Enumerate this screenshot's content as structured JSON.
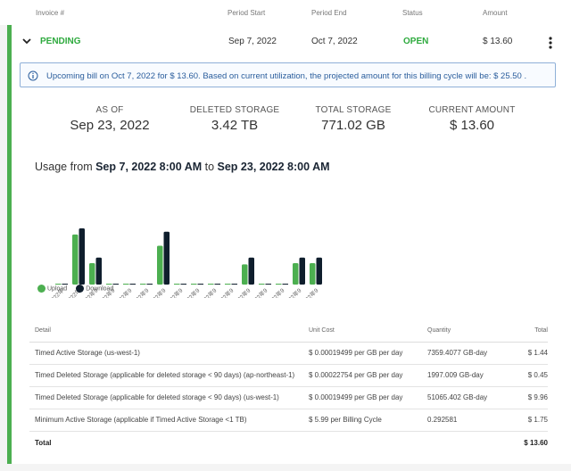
{
  "header": {
    "invoice_col": "Invoice #",
    "period_start_col": "Period Start",
    "period_end_col": "Period End",
    "status_col": "Status",
    "amount_col": "Amount"
  },
  "invoice": {
    "name": "PENDING",
    "period_start": "Sep 7, 2022",
    "period_end": "Oct 7, 2022",
    "status": "OPEN",
    "amount": "$ 13.60"
  },
  "notice": "Upcoming bill on Oct 7, 2022 for $ 13.60. Based on current utilization, the projected amount for this billing cycle will be: $ 25.50 .",
  "stats": [
    {
      "label": "AS OF",
      "value": "Sep 23, 2022"
    },
    {
      "label": "DELETED STORAGE",
      "value": "3.42 TB"
    },
    {
      "label": "TOTAL STORAGE",
      "value": "771.02 GB"
    },
    {
      "label": "CURRENT AMOUNT",
      "value": "$ 13.60"
    }
  ],
  "usage": {
    "prefix": "Usage from ",
    "start": "Sep 7, 2022 8:00 AM",
    "middle": " to ",
    "end": "Sep 23, 2022 8:00 AM"
  },
  "chart_data": {
    "type": "bar",
    "categories": [
      "2022年",
      "2022年",
      "2022年9",
      "2022年9",
      "2022年9",
      "2022年9",
      "2022年9",
      "2022年9",
      "2022年9",
      "2022年9",
      "2022年9",
      "2022年9",
      "2022年9",
      "2022年9",
      "2022年9",
      "2022年9"
    ],
    "series": [
      {
        "name": "Upload",
        "color": "#4caf50",
        "values": [
          0,
          0.89,
          0.38,
          0,
          0,
          0,
          0.69,
          0,
          0,
          0,
          0,
          0.36,
          0,
          0,
          0.38,
          0.38
        ]
      },
      {
        "name": "Download",
        "color": "#0f1e2d",
        "values": [
          0,
          1.0,
          0.48,
          0,
          0,
          0,
          0.94,
          0,
          0,
          0,
          0,
          0.48,
          0,
          0,
          0.48,
          0.48
        ]
      }
    ],
    "ylim": [
      0,
      1.0
    ],
    "legend": "bottom-left"
  },
  "table": {
    "columns": [
      "Detail",
      "Unit Cost",
      "Quantity",
      "Total"
    ],
    "rows": [
      [
        "Timed Active Storage (us-west-1)",
        "$ 0.00019499 per GB per day",
        "7359.4077 GB-day",
        "$ 1.44"
      ],
      [
        "Timed Deleted Storage (applicable for deleted storage < 90 days) (ap-northeast-1)",
        "$ 0.00022754 per GB per day",
        "1997.009 GB-day",
        "$ 0.45"
      ],
      [
        "Timed Deleted Storage (applicable for deleted storage < 90 days) (us-west-1)",
        "$ 0.00019499 per GB per day",
        "51065.402 GB-day",
        "$ 9.96"
      ],
      [
        "Minimum Active Storage (applicable if Timed Active Storage <1 TB)",
        "$ 5.99 per Billing Cycle",
        "0.292581",
        "$ 1.75"
      ]
    ],
    "total_label": "Total",
    "total_value": "$ 13.60"
  },
  "icons": {
    "expand": "chevron-down-icon",
    "menu": "kebab-menu-icon",
    "info": "info-icon"
  }
}
